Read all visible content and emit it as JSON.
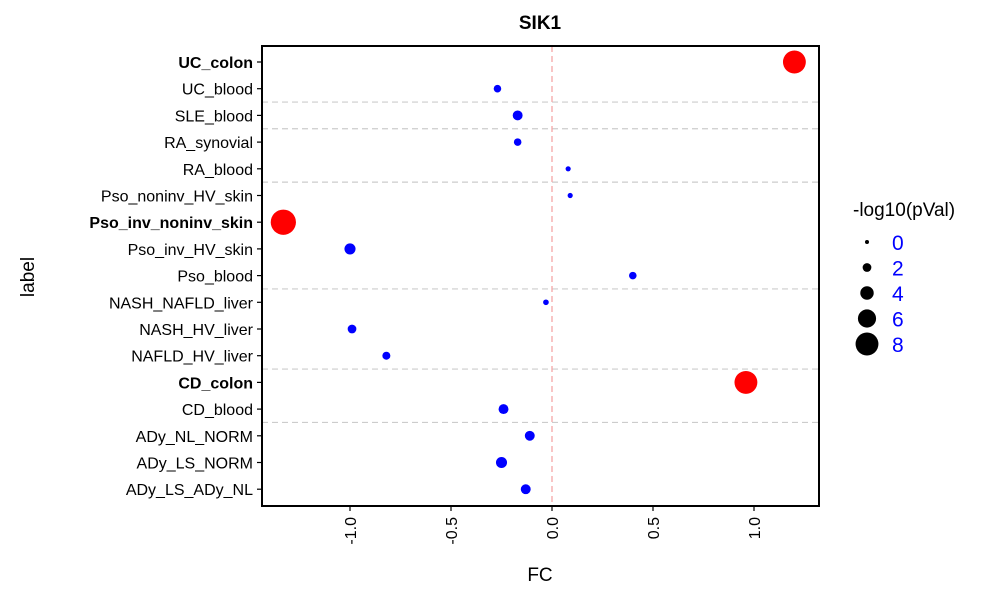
{
  "chart_data": {
    "type": "scatter",
    "title": "SIK1",
    "xlabel": "FC",
    "ylabel": "label",
    "xlim": [
      -1.45,
      1.3
    ],
    "x_ticks": [
      -1.0,
      -0.5,
      0.0,
      0.5,
      1.0
    ],
    "x_tick_labels": [
      "-1.0",
      "-0.5",
      "0.0",
      "0.5",
      "1.0"
    ],
    "reference_line_x": 0,
    "grid": false,
    "legend": {
      "title": "-log10(pVal)",
      "position": "right",
      "entries": [
        {
          "label": "0",
          "value": 0
        },
        {
          "label": "2",
          "value": 2
        },
        {
          "label": "4",
          "value": 4
        },
        {
          "label": "6",
          "value": 6
        },
        {
          "label": "8",
          "value": 8
        }
      ]
    },
    "colors": {
      "significant": "#ff0000",
      "not_significant": "#0000ff",
      "reference_line": "#f4a6a6",
      "group_separator": "#cccccc",
      "legend_text": "#0000ff"
    },
    "categories": [
      "UC_colon",
      "UC_blood",
      "SLE_blood",
      "RA_synovial",
      "RA_blood",
      "Pso_noninv_HV_skin",
      "Pso_inv_noninv_skin",
      "Pso_inv_HV_skin",
      "Pso_blood",
      "NASH_NAFLD_liver",
      "NASH_HV_liver",
      "NAFLD_HV_liver",
      "CD_colon",
      "CD_blood",
      "ADy_NL_NORM",
      "ADy_LS_NORM",
      "ADy_LS_ADy_NL"
    ],
    "bold_categories": [
      "UC_colon",
      "Pso_inv_noninv_skin",
      "CD_colon"
    ],
    "group_separators_after": [
      "UC_blood",
      "SLE_blood",
      "RA_blood",
      "Pso_blood",
      "NAFLD_HV_liver",
      "CD_blood"
    ],
    "points": [
      {
        "label": "UC_colon",
        "fc": 1.2,
        "neglog10p": 8,
        "significant": true
      },
      {
        "label": "UC_blood",
        "fc": -0.27,
        "neglog10p": 1.5,
        "significant": false
      },
      {
        "label": "SLE_blood",
        "fc": -0.17,
        "neglog10p": 2.5,
        "significant": false
      },
      {
        "label": "RA_synovial",
        "fc": -0.17,
        "neglog10p": 1.5,
        "significant": false
      },
      {
        "label": "RA_blood",
        "fc": 0.08,
        "neglog10p": 0.5,
        "significant": false
      },
      {
        "label": "Pso_noninv_HV_skin",
        "fc": 0.09,
        "neglog10p": 0.5,
        "significant": false
      },
      {
        "label": "Pso_inv_noninv_skin",
        "fc": -1.33,
        "neglog10p": 9,
        "significant": true
      },
      {
        "label": "Pso_inv_HV_skin",
        "fc": -1.0,
        "neglog10p": 3,
        "significant": false
      },
      {
        "label": "Pso_blood",
        "fc": 0.4,
        "neglog10p": 1.5,
        "significant": false
      },
      {
        "label": "NASH_NAFLD_liver",
        "fc": -0.03,
        "neglog10p": 0.7,
        "significant": false
      },
      {
        "label": "NASH_HV_liver",
        "fc": -0.99,
        "neglog10p": 2,
        "significant": false
      },
      {
        "label": "NAFLD_HV_liver",
        "fc": -0.82,
        "neglog10p": 1.7,
        "significant": false
      },
      {
        "label": "CD_colon",
        "fc": 0.96,
        "neglog10p": 8,
        "significant": true
      },
      {
        "label": "CD_blood",
        "fc": -0.24,
        "neglog10p": 2.5,
        "significant": false
      },
      {
        "label": "ADy_NL_NORM",
        "fc": -0.11,
        "neglog10p": 2.5,
        "significant": false
      },
      {
        "label": "ADy_LS_NORM",
        "fc": -0.25,
        "neglog10p": 3,
        "significant": false
      },
      {
        "label": "ADy_LS_ADy_NL",
        "fc": -0.13,
        "neglog10p": 2.5,
        "significant": false
      }
    ]
  }
}
